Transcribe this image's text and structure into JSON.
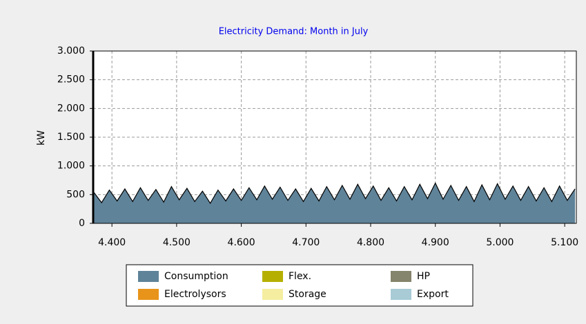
{
  "chart_data": {
    "type": "area",
    "title": "Electricity Demand: Month in July",
    "y_label": "kW",
    "x": [
      4372,
      4384,
      4396,
      4408,
      4420,
      4432,
      4444,
      4456,
      4468,
      4480,
      4492,
      4504,
      4516,
      4528,
      4540,
      4552,
      4564,
      4576,
      4588,
      4600,
      4612,
      4624,
      4636,
      4648,
      4660,
      4672,
      4684,
      4696,
      4708,
      4720,
      4732,
      4744,
      4756,
      4768,
      4780,
      4792,
      4804,
      4816,
      4828,
      4840,
      4852,
      4864,
      4876,
      4888,
      4900,
      4912,
      4924,
      4936,
      4948,
      4960,
      4972,
      4984,
      4996,
      5008,
      5020,
      5032,
      5044,
      5056,
      5068,
      5080,
      5092,
      5104,
      5116
    ],
    "series": [
      {
        "name": "Consumption",
        "color": "#5f8399",
        "values": [
          540,
          360,
          580,
          390,
          600,
          380,
          620,
          400,
          590,
          370,
          640,
          410,
          610,
          380,
          560,
          350,
          580,
          390,
          600,
          400,
          620,
          410,
          650,
          420,
          630,
          400,
          600,
          380,
          610,
          390,
          640,
          410,
          660,
          420,
          680,
          430,
          650,
          400,
          620,
          390,
          640,
          410,
          680,
          430,
          700,
          420,
          660,
          400,
          640,
          380,
          670,
          410,
          690,
          420,
          650,
          400,
          640,
          390,
          620,
          380,
          650,
          400,
          600
        ]
      },
      {
        "name": "Electrolysors",
        "color": "#e8941a"
      },
      {
        "name": "Flex.",
        "color": "#b5b000"
      },
      {
        "name": "Storage",
        "color": "#f5eea0"
      },
      {
        "name": "HP",
        "color": "#85846c"
      },
      {
        "name": "Export",
        "color": "#a8cbd6"
      }
    ],
    "xlim": [
      4371,
      5118
    ],
    "ylim": [
      0,
      3000
    ],
    "xticks": [
      {
        "value": 4400,
        "label": "4.400"
      },
      {
        "value": 4500,
        "label": "4.500"
      },
      {
        "value": 4600,
        "label": "4.600"
      },
      {
        "value": 4700,
        "label": "4.700"
      },
      {
        "value": 4800,
        "label": "4.800"
      },
      {
        "value": 4900,
        "label": "4.900"
      },
      {
        "value": 5000,
        "label": "5.000"
      },
      {
        "value": 5100,
        "label": "5.100"
      }
    ],
    "yticks": [
      0,
      500,
      {
        "value": 1000,
        "label": "1.000"
      },
      {
        "value": 1500,
        "label": "1.500"
      },
      {
        "value": 2000,
        "label": "2.000"
      },
      {
        "value": 2500,
        "label": "2.500"
      },
      {
        "value": 3000,
        "label": "3.000"
      }
    ],
    "grid": true
  }
}
